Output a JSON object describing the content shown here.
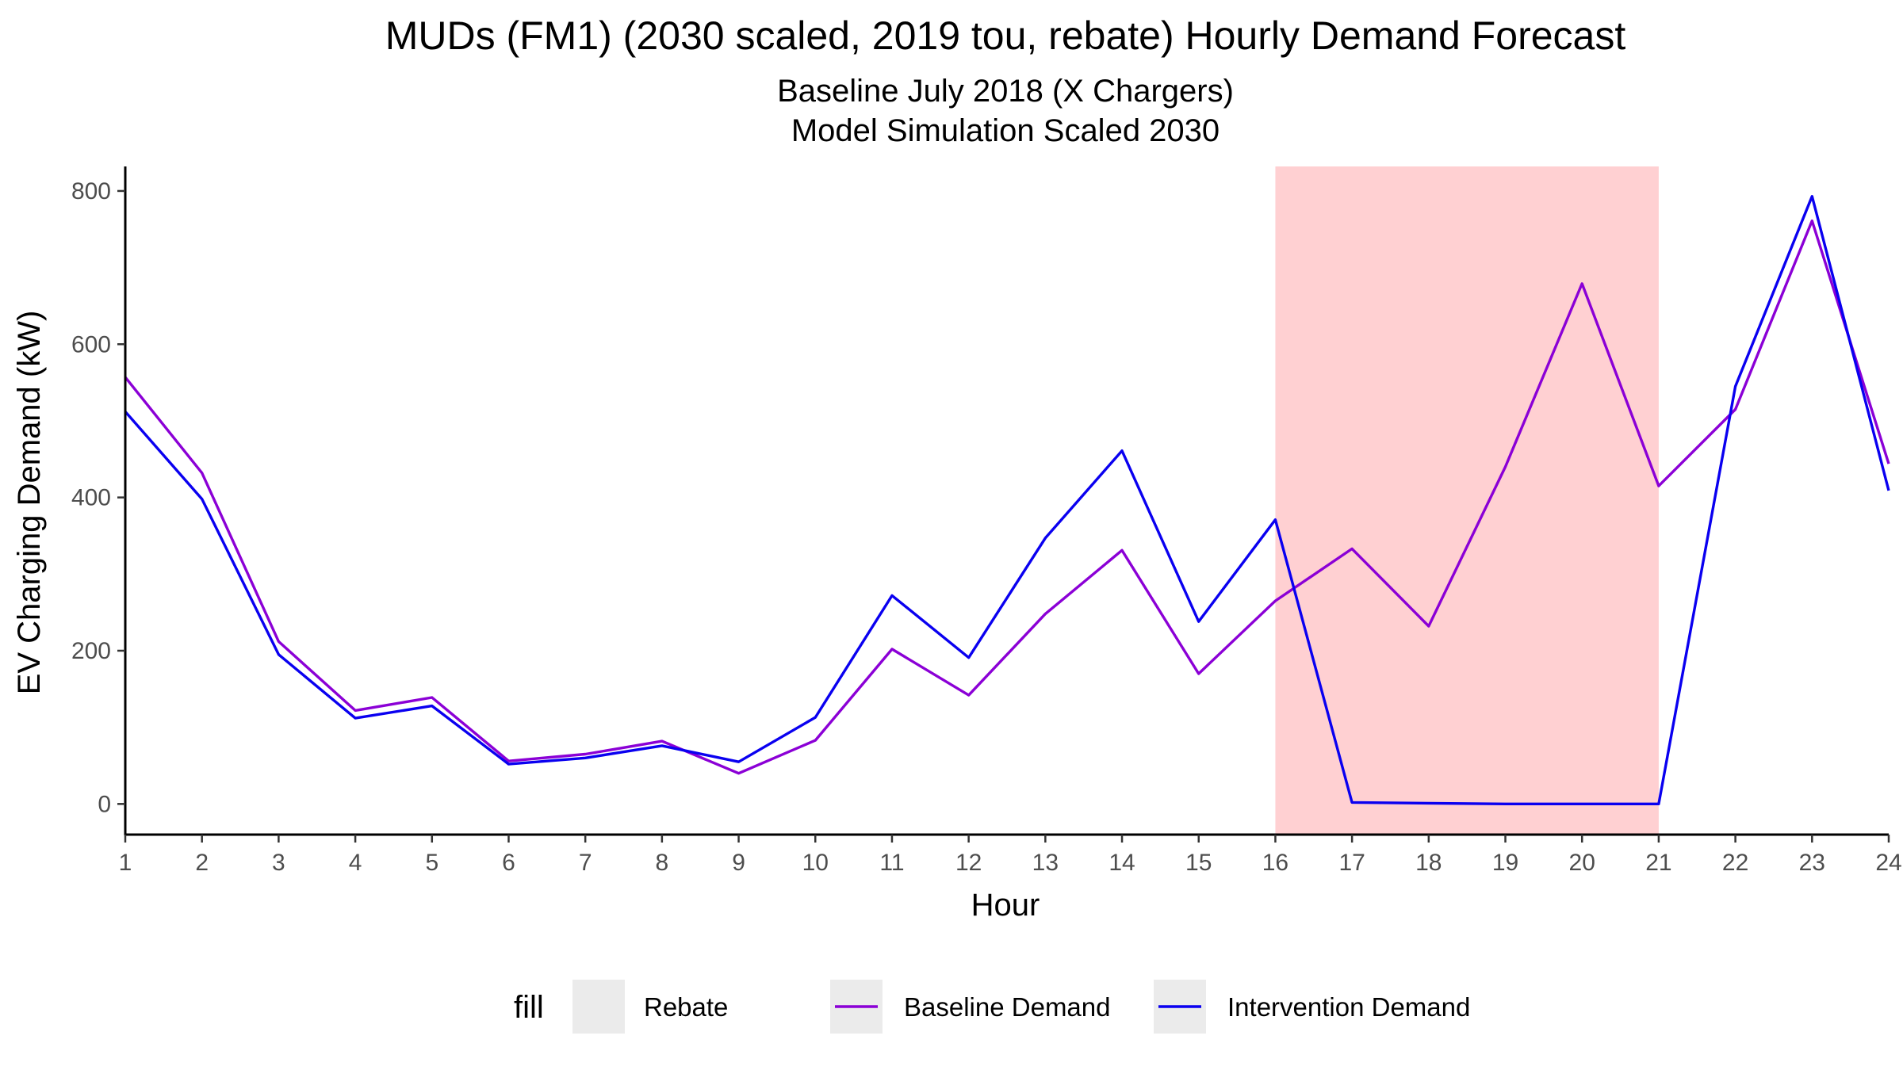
{
  "chart_data": {
    "type": "line",
    "title": "MUDs (FM1) (2030 scaled, 2019 tou, rebate) Hourly Demand Forecast",
    "subtitle_lines": [
      "Baseline July 2018 (X Chargers)",
      "Model Simulation Scaled 2030"
    ],
    "xlabel": "Hour",
    "ylabel": "EV Charging Demand (kW)",
    "x": [
      1,
      2,
      3,
      4,
      5,
      6,
      7,
      8,
      9,
      10,
      11,
      12,
      13,
      14,
      15,
      16,
      17,
      18,
      19,
      20,
      21,
      22,
      23,
      24
    ],
    "xlim": [
      1,
      24
    ],
    "ylim": [
      -40,
      832
    ],
    "yticks": [
      0,
      200,
      400,
      600,
      800
    ],
    "xticks": [
      1,
      2,
      3,
      4,
      5,
      6,
      7,
      8,
      9,
      10,
      11,
      12,
      13,
      14,
      15,
      16,
      17,
      18,
      19,
      20,
      21,
      22,
      23,
      24
    ],
    "series": [
      {
        "name": "Baseline Demand",
        "color": "#8B00D6",
        "values": [
          557,
          432,
          212,
          122,
          139,
          56,
          65,
          82,
          40,
          83,
          202,
          142,
          248,
          331,
          170,
          265,
          333,
          232,
          440,
          679,
          415,
          515,
          761,
          444
        ]
      },
      {
        "name": "Intervention Demand",
        "color": "#0A00F0",
        "values": [
          512,
          398,
          195,
          112,
          128,
          52,
          60,
          76,
          55,
          113,
          272,
          191,
          347,
          461,
          238,
          371,
          2,
          1,
          0,
          0,
          0,
          545,
          793,
          409
        ]
      }
    ],
    "shaded_regions": [
      {
        "name": "Rebate",
        "from": 16,
        "to": 21,
        "color": "#FFD0D2"
      }
    ],
    "grid": false,
    "legend": {
      "position": "bottom",
      "title": "fill",
      "entries": [
        {
          "label": "Rebate",
          "kind": "fill"
        },
        {
          "label": "Baseline Demand",
          "kind": "line",
          "color": "#8B00D6"
        },
        {
          "label": "Intervention Demand",
          "kind": "line",
          "color": "#0A00F0"
        }
      ]
    }
  }
}
